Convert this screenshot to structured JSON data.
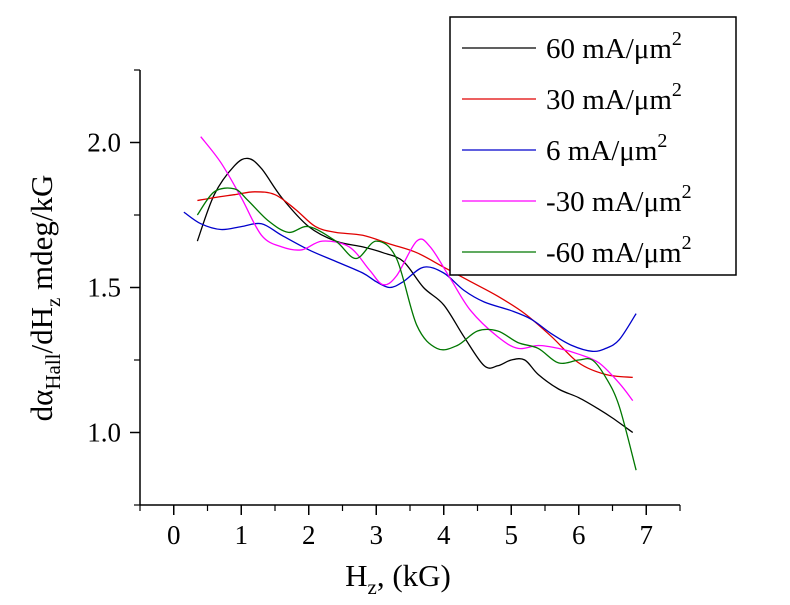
{
  "chart_data": {
    "type": "line",
    "xlabel": {
      "main": "H",
      "sub": "z",
      "tail": ", (kG)"
    },
    "ylabel": {
      "p1": "dα",
      "s1": "Hall",
      "p2": "/dH",
      "s2": "z",
      "p3": " mdeg/kG"
    },
    "xlim": [
      -0.5,
      7.5
    ],
    "ylim": [
      0.75,
      2.25
    ],
    "xticks": [
      0,
      1,
      2,
      3,
      4,
      5,
      6,
      7
    ],
    "xtick_labels": [
      "0",
      "1",
      "2",
      "3",
      "4",
      "5",
      "6",
      "7"
    ],
    "yticks": [
      1.0,
      1.5,
      2.0
    ],
    "ytick_labels": [
      "1.0",
      "1.5",
      "2.0"
    ],
    "legend_position": "top-right",
    "series": [
      {
        "name": "60 mA/μm",
        "name_sup": "2",
        "color": "#000000",
        "x": [
          0.35,
          0.6,
          0.9,
          1.1,
          1.3,
          1.6,
          2.0,
          2.4,
          2.8,
          3.1,
          3.4,
          3.7,
          4.0,
          4.3,
          4.6,
          4.8,
          5.0,
          5.2,
          5.4,
          5.7,
          6.0,
          6.3,
          6.5,
          6.8
        ],
        "y": [
          1.66,
          1.82,
          1.92,
          1.945,
          1.91,
          1.81,
          1.71,
          1.66,
          1.64,
          1.62,
          1.59,
          1.5,
          1.44,
          1.33,
          1.23,
          1.23,
          1.25,
          1.25,
          1.2,
          1.15,
          1.12,
          1.08,
          1.05,
          1.0
        ]
      },
      {
        "name": "30 mA/μm",
        "name_sup": "2",
        "color": "#e00000",
        "x": [
          0.35,
          0.6,
          0.9,
          1.2,
          1.5,
          1.8,
          2.1,
          2.4,
          2.8,
          3.2,
          3.6,
          4.0,
          4.4,
          4.8,
          5.2,
          5.6,
          6.0,
          6.4,
          6.8
        ],
        "y": [
          1.8,
          1.81,
          1.82,
          1.83,
          1.82,
          1.77,
          1.71,
          1.69,
          1.68,
          1.65,
          1.62,
          1.57,
          1.52,
          1.47,
          1.41,
          1.33,
          1.24,
          1.2,
          1.19
        ]
      },
      {
        "name": "6 mA/μm",
        "name_sup": "2",
        "color": "#0000cc",
        "x": [
          0.15,
          0.4,
          0.7,
          1.0,
          1.3,
          1.6,
          2.0,
          2.4,
          2.8,
          3.0,
          3.2,
          3.4,
          3.7,
          4.0,
          4.3,
          4.6,
          5.0,
          5.3,
          5.6,
          5.9,
          6.2,
          6.4,
          6.6,
          6.85
        ],
        "y": [
          1.76,
          1.72,
          1.7,
          1.71,
          1.72,
          1.68,
          1.63,
          1.59,
          1.55,
          1.52,
          1.5,
          1.52,
          1.57,
          1.55,
          1.49,
          1.45,
          1.42,
          1.39,
          1.34,
          1.3,
          1.28,
          1.29,
          1.32,
          1.41
        ]
      },
      {
        "name": "-30 mA/μm",
        "name_sup": "2",
        "color": "#ff00ff",
        "x": [
          0.4,
          0.7,
          1.0,
          1.3,
          1.6,
          1.9,
          2.2,
          2.6,
          2.9,
          3.1,
          3.3,
          3.6,
          3.8,
          4.1,
          4.4,
          4.8,
          5.1,
          5.4,
          5.7,
          6.0,
          6.3,
          6.6,
          6.8
        ],
        "y": [
          2.02,
          1.93,
          1.81,
          1.68,
          1.64,
          1.63,
          1.66,
          1.64,
          1.56,
          1.51,
          1.54,
          1.66,
          1.64,
          1.53,
          1.42,
          1.33,
          1.29,
          1.3,
          1.29,
          1.27,
          1.24,
          1.17,
          1.11
        ]
      },
      {
        "name": "-60 mA/μm",
        "name_sup": "2",
        "color": "#007700",
        "x": [
          0.35,
          0.6,
          0.9,
          1.1,
          1.4,
          1.7,
          2.0,
          2.4,
          2.7,
          3.0,
          3.3,
          3.6,
          3.9,
          4.2,
          4.5,
          4.8,
          5.1,
          5.4,
          5.7,
          6.0,
          6.2,
          6.4,
          6.6,
          6.85
        ],
        "y": [
          1.75,
          1.83,
          1.84,
          1.8,
          1.73,
          1.69,
          1.71,
          1.66,
          1.6,
          1.66,
          1.6,
          1.37,
          1.29,
          1.3,
          1.35,
          1.35,
          1.31,
          1.29,
          1.24,
          1.25,
          1.25,
          1.19,
          1.09,
          0.87
        ]
      }
    ]
  }
}
